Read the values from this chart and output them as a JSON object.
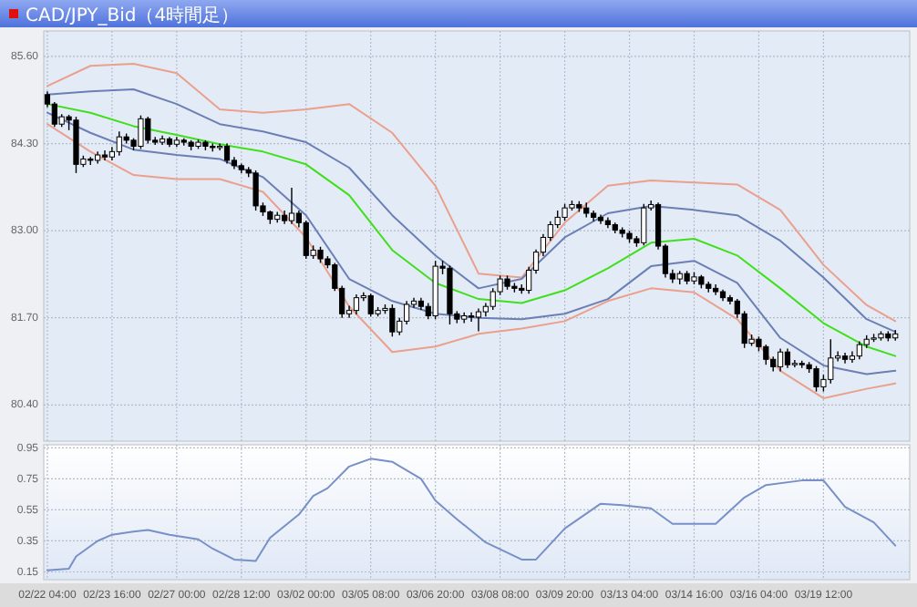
{
  "chart_data": [
    {
      "type": "candlestick",
      "title": "CAD/JPY_Bid（4時間足）",
      "tick_labels": "y",
      "grid": true,
      "ylim": [
        79.86,
        85.98
      ],
      "yticks": [
        {
          "value": 80.4,
          "label": "80.40"
        },
        {
          "value": 81.7,
          "label": "81.70"
        },
        {
          "value": 83.0,
          "label": "83.00"
        },
        {
          "value": 84.3,
          "label": "84.30"
        },
        {
          "value": 85.6,
          "label": "85.60"
        }
      ],
      "categories": [
        null,
        null,
        null,
        null,
        null,
        null,
        null,
        null,
        null,
        null,
        null,
        null,
        null,
        null,
        null,
        null,
        null,
        null,
        null,
        null,
        null,
        null,
        null,
        null,
        null,
        null,
        null,
        null,
        null,
        null,
        null,
        null,
        null,
        null,
        null,
        null,
        null,
        null,
        null,
        null,
        null,
        null,
        null,
        null,
        null,
        null,
        null,
        null,
        null,
        null,
        null,
        null,
        null,
        null,
        null,
        null,
        null,
        null,
        null,
        null,
        null,
        null,
        null,
        null,
        null,
        null,
        null,
        null,
        null,
        null,
        null,
        null,
        null,
        null,
        null,
        null,
        null,
        null,
        null,
        null,
        null,
        null,
        null,
        null,
        null,
        null,
        null,
        null,
        null,
        null,
        null,
        null,
        null,
        null,
        null,
        null,
        null,
        null,
        null,
        null,
        null,
        null,
        null,
        null,
        null,
        null,
        null,
        null,
        null,
        null,
        null,
        null,
        null,
        null,
        null,
        null,
        null,
        null,
        null
      ],
      "ohlc": [
        [
          85.03,
          85.08,
          84.84,
          84.89
        ],
        [
          84.89,
          84.92,
          84.55,
          84.59
        ],
        [
          84.59,
          84.74,
          84.55,
          84.7
        ],
        [
          84.7,
          84.73,
          84.5,
          84.65
        ],
        [
          84.65,
          84.7,
          83.86,
          83.99
        ],
        [
          83.99,
          84.12,
          83.95,
          84.07
        ],
        [
          84.07,
          84.1,
          83.98,
          84.05
        ],
        [
          84.05,
          84.18,
          84.0,
          84.13
        ],
        [
          84.13,
          84.2,
          84.05,
          84.1
        ],
        [
          84.1,
          84.25,
          84.05,
          84.18
        ],
        [
          84.18,
          84.48,
          84.12,
          84.4
        ],
        [
          84.4,
          84.45,
          84.3,
          84.35
        ],
        [
          84.35,
          84.38,
          84.2,
          84.26
        ],
        [
          84.26,
          84.72,
          84.22,
          84.67
        ],
        [
          84.67,
          84.7,
          84.3,
          84.35
        ],
        [
          84.35,
          84.4,
          84.28,
          84.32
        ],
        [
          84.32,
          84.42,
          84.28,
          84.37
        ],
        [
          84.37,
          84.4,
          84.25,
          84.29
        ],
        [
          84.29,
          84.4,
          84.25,
          84.35
        ],
        [
          84.35,
          84.38,
          84.27,
          84.32
        ],
        [
          84.32,
          84.35,
          84.2,
          84.26
        ],
        [
          84.26,
          84.36,
          84.22,
          84.32
        ],
        [
          84.32,
          84.35,
          84.2,
          84.26
        ],
        [
          84.26,
          84.3,
          84.18,
          84.24
        ],
        [
          84.24,
          84.3,
          84.2,
          84.26
        ],
        [
          84.26,
          84.3,
          84.0,
          84.05
        ],
        [
          84.05,
          84.1,
          83.92,
          83.97
        ],
        [
          83.97,
          84.0,
          83.86,
          83.91
        ],
        [
          83.91,
          83.95,
          83.8,
          83.86
        ],
        [
          83.86,
          83.9,
          83.3,
          83.37
        ],
        [
          83.37,
          83.42,
          83.22,
          83.28
        ],
        [
          83.28,
          83.3,
          83.1,
          83.17
        ],
        [
          83.17,
          83.28,
          83.12,
          83.23
        ],
        [
          83.23,
          83.3,
          83.1,
          83.15
        ],
        [
          83.15,
          83.64,
          83.1,
          83.26
        ],
        [
          83.26,
          83.3,
          83.05,
          83.12
        ],
        [
          83.12,
          83.15,
          82.58,
          82.63
        ],
        [
          82.63,
          82.78,
          82.58,
          82.71
        ],
        [
          82.71,
          82.76,
          82.52,
          82.58
        ],
        [
          82.58,
          82.62,
          82.44,
          82.49
        ],
        [
          82.49,
          82.52,
          82.1,
          82.14
        ],
        [
          82.14,
          82.18,
          81.7,
          81.76
        ],
        [
          81.76,
          81.88,
          81.7,
          81.81
        ],
        [
          81.81,
          82.05,
          81.75,
          82.0
        ],
        [
          82.0,
          82.08,
          81.95,
          82.03
        ],
        [
          82.03,
          82.06,
          81.72,
          81.76
        ],
        [
          81.76,
          81.86,
          81.72,
          81.81
        ],
        [
          81.81,
          81.9,
          81.76,
          81.84
        ],
        [
          81.84,
          81.9,
          81.42,
          81.49
        ],
        [
          81.49,
          81.7,
          81.44,
          81.65
        ],
        [
          81.65,
          81.95,
          81.6,
          81.9
        ],
        [
          81.9,
          82.0,
          81.85,
          81.95
        ],
        [
          81.95,
          82.0,
          81.82,
          81.87
        ],
        [
          81.87,
          81.92,
          81.68,
          81.73
        ],
        [
          81.73,
          82.55,
          81.68,
          82.47
        ],
        [
          82.47,
          82.55,
          82.35,
          82.44
        ],
        [
          82.44,
          82.48,
          81.6,
          81.76
        ],
        [
          81.76,
          81.8,
          81.62,
          81.68
        ],
        [
          81.68,
          81.78,
          81.62,
          81.73
        ],
        [
          81.73,
          81.78,
          81.64,
          81.71
        ],
        [
          81.71,
          81.84,
          81.5,
          81.79
        ],
        [
          81.79,
          81.92,
          81.72,
          81.87
        ],
        [
          81.87,
          82.14,
          81.82,
          82.09
        ],
        [
          82.09,
          82.33,
          82.04,
          82.28
        ],
        [
          82.28,
          82.33,
          82.12,
          82.17
        ],
        [
          82.17,
          82.22,
          82.08,
          82.14
        ],
        [
          82.14,
          82.2,
          82.06,
          82.11
        ],
        [
          82.11,
          82.46,
          82.06,
          82.41
        ],
        [
          82.41,
          82.72,
          82.36,
          82.68
        ],
        [
          82.68,
          82.95,
          82.62,
          82.9
        ],
        [
          82.9,
          83.14,
          82.85,
          83.09
        ],
        [
          83.09,
          83.3,
          83.04,
          83.2
        ],
        [
          83.2,
          83.4,
          83.15,
          83.34
        ],
        [
          83.34,
          83.45,
          83.3,
          83.39
        ],
        [
          83.39,
          83.44,
          83.28,
          83.34
        ],
        [
          83.34,
          83.42,
          83.2,
          83.26
        ],
        [
          83.26,
          83.3,
          83.14,
          83.2
        ],
        [
          83.2,
          83.24,
          83.1,
          83.15
        ],
        [
          83.15,
          83.2,
          83.04,
          83.09
        ],
        [
          83.09,
          83.12,
          82.96,
          83.01
        ],
        [
          83.01,
          83.05,
          82.9,
          82.96
        ],
        [
          82.96,
          83.0,
          82.82,
          82.88
        ],
        [
          82.88,
          82.92,
          82.76,
          82.82
        ],
        [
          82.82,
          83.4,
          82.78,
          83.34
        ],
        [
          83.34,
          83.45,
          83.3,
          83.39
        ],
        [
          83.39,
          83.42,
          82.72,
          82.77
        ],
        [
          82.77,
          82.8,
          82.3,
          82.36
        ],
        [
          82.36,
          82.42,
          82.22,
          82.28
        ],
        [
          82.28,
          82.4,
          82.2,
          82.36
        ],
        [
          82.36,
          82.4,
          82.2,
          82.25
        ],
        [
          82.25,
          82.38,
          82.2,
          82.31
        ],
        [
          82.31,
          82.34,
          82.14,
          82.2
        ],
        [
          82.2,
          82.24,
          82.08,
          82.14
        ],
        [
          82.14,
          82.2,
          82.04,
          82.09
        ],
        [
          82.09,
          82.12,
          81.95,
          82.0
        ],
        [
          82.0,
          82.04,
          81.9,
          81.95
        ],
        [
          81.95,
          81.98,
          81.7,
          81.76
        ],
        [
          81.76,
          81.8,
          81.25,
          81.32
        ],
        [
          81.32,
          81.45,
          81.28,
          81.38
        ],
        [
          81.38,
          81.42,
          81.2,
          81.27
        ],
        [
          81.27,
          81.3,
          81.0,
          81.08
        ],
        [
          81.08,
          81.12,
          80.9,
          80.97
        ],
        [
          80.97,
          81.24,
          80.9,
          81.19
        ],
        [
          81.19,
          81.24,
          80.95,
          81.0
        ],
        [
          81.0,
          81.07,
          80.96,
          81.02
        ],
        [
          81.02,
          81.06,
          80.95,
          81.0
        ],
        [
          81.0,
          81.04,
          80.88,
          80.94
        ],
        [
          80.94,
          80.98,
          80.6,
          80.67
        ],
        [
          80.67,
          80.85,
          80.6,
          80.78
        ],
        [
          80.78,
          81.38,
          80.72,
          81.1
        ],
        [
          81.1,
          81.2,
          81.05,
          81.13
        ],
        [
          81.13,
          81.18,
          81.02,
          81.08
        ],
        [
          81.08,
          81.2,
          81.03,
          81.13
        ],
        [
          81.13,
          81.35,
          81.08,
          81.3
        ],
        [
          81.3,
          81.44,
          81.25,
          81.38
        ],
        [
          81.38,
          81.46,
          81.34,
          81.4
        ],
        [
          81.4,
          81.5,
          81.36,
          81.46
        ],
        [
          81.46,
          81.5,
          81.35,
          81.4
        ],
        [
          81.4,
          81.52,
          81.36,
          81.46
        ]
      ],
      "series": [
        {
          "type": "line",
          "color": "#eaa08c",
          "values": [
            85.16,
            null,
            null,
            null,
            null,
            null,
            85.46,
            null,
            null,
            null,
            null,
            null,
            85.49,
            null,
            null,
            null,
            null,
            null,
            85.35,
            null,
            null,
            null,
            null,
            null,
            84.81,
            null,
            null,
            null,
            null,
            null,
            84.76,
            null,
            null,
            null,
            null,
            null,
            84.81,
            null,
            null,
            null,
            null,
            null,
            84.89,
            null,
            null,
            null,
            null,
            null,
            84.46,
            null,
            null,
            null,
            null,
            null,
            83.67,
            null,
            null,
            null,
            null,
            null,
            82.36,
            null,
            null,
            null,
            null,
            null,
            82.3,
            null,
            null,
            null,
            null,
            null,
            83.12,
            null,
            null,
            null,
            null,
            null,
            83.67,
            null,
            null,
            null,
            null,
            null,
            83.75,
            null,
            null,
            null,
            null,
            null,
            83.72,
            null,
            null,
            null,
            null,
            null,
            83.69,
            null,
            null,
            null,
            null,
            null,
            83.31,
            null,
            null,
            null,
            null,
            null,
            82.49,
            null,
            null,
            null,
            null,
            null,
            81.89,
            null,
            null,
            null,
            81.65
          ]
        },
        {
          "type": "line",
          "color": "#6b7fb5",
          "values": [
            85.03,
            null,
            null,
            null,
            null,
            null,
            85.08,
            null,
            null,
            null,
            null,
            null,
            85.11,
            null,
            null,
            null,
            null,
            null,
            84.89,
            null,
            null,
            null,
            null,
            null,
            84.59,
            null,
            null,
            null,
            null,
            null,
            84.48,
            null,
            null,
            null,
            null,
            null,
            84.32,
            null,
            null,
            null,
            null,
            null,
            83.94,
            null,
            null,
            null,
            null,
            null,
            83.23,
            null,
            null,
            null,
            null,
            null,
            82.63,
            null,
            null,
            null,
            null,
            null,
            82.14,
            null,
            null,
            null,
            null,
            null,
            82.28,
            null,
            null,
            null,
            null,
            null,
            82.9,
            null,
            null,
            null,
            null,
            null,
            83.26,
            null,
            null,
            null,
            null,
            null,
            83.37,
            null,
            null,
            null,
            null,
            null,
            83.31,
            null,
            null,
            null,
            null,
            null,
            83.23,
            null,
            null,
            null,
            null,
            null,
            82.85,
            null,
            null,
            null,
            null,
            null,
            82.3,
            null,
            null,
            null,
            null,
            null,
            81.68,
            null,
            null,
            null,
            81.49
          ]
        },
        {
          "type": "line",
          "color": "#3ee01a",
          "values": [
            84.89,
            null,
            null,
            null,
            null,
            null,
            84.76,
            null,
            null,
            null,
            null,
            null,
            84.56,
            null,
            null,
            null,
            null,
            null,
            84.43,
            null,
            null,
            null,
            null,
            null,
            84.29,
            null,
            null,
            null,
            null,
            null,
            84.18,
            null,
            null,
            null,
            null,
            null,
            83.99,
            null,
            null,
            null,
            null,
            null,
            83.53,
            null,
            null,
            null,
            null,
            null,
            82.71,
            null,
            null,
            null,
            null,
            null,
            82.22,
            null,
            null,
            null,
            null,
            null,
            81.98,
            null,
            null,
            null,
            null,
            null,
            81.92,
            null,
            null,
            null,
            null,
            null,
            82.11,
            null,
            null,
            null,
            null,
            null,
            82.44,
            null,
            null,
            null,
            null,
            null,
            82.82,
            null,
            null,
            null,
            null,
            null,
            82.88,
            null,
            null,
            null,
            null,
            null,
            82.63,
            null,
            null,
            null,
            null,
            null,
            82.14,
            null,
            null,
            null,
            null,
            null,
            81.62,
            null,
            null,
            null,
            null,
            null,
            81.27,
            null,
            null,
            null,
            81.13
          ]
        },
        {
          "type": "line",
          "color": "#6b7fb5",
          "values": [
            84.76,
            null,
            null,
            null,
            null,
            null,
            84.46,
            null,
            null,
            null,
            null,
            null,
            84.21,
            null,
            null,
            null,
            null,
            null,
            84.13,
            null,
            null,
            null,
            null,
            null,
            84.07,
            null,
            null,
            null,
            null,
            null,
            83.8,
            null,
            null,
            null,
            null,
            null,
            83.23,
            null,
            null,
            null,
            null,
            null,
            82.28,
            null,
            null,
            null,
            null,
            null,
            81.95,
            null,
            null,
            null,
            null,
            null,
            81.76,
            null,
            null,
            null,
            null,
            null,
            81.7,
            null,
            null,
            null,
            null,
            null,
            81.68,
            null,
            null,
            null,
            null,
            null,
            81.76,
            null,
            null,
            null,
            null,
            null,
            81.98,
            null,
            null,
            null,
            null,
            null,
            82.47,
            null,
            null,
            null,
            null,
            null,
            82.55,
            null,
            null,
            null,
            null,
            null,
            82.22,
            null,
            null,
            null,
            null,
            null,
            81.4,
            null,
            null,
            null,
            null,
            null,
            80.99,
            null,
            null,
            null,
            null,
            null,
            80.86,
            null,
            null,
            null,
            80.91
          ]
        },
        {
          "type": "line",
          "color": "#eaa08c",
          "values": [
            84.59,
            null,
            null,
            null,
            null,
            null,
            84.18,
            null,
            null,
            null,
            null,
            null,
            83.83,
            null,
            null,
            null,
            null,
            null,
            83.77,
            null,
            null,
            null,
            null,
            null,
            83.77,
            null,
            null,
            null,
            null,
            null,
            83.58,
            null,
            null,
            null,
            null,
            null,
            82.9,
            null,
            null,
            null,
            null,
            null,
            81.87,
            null,
            null,
            null,
            null,
            null,
            81.19,
            null,
            null,
            null,
            null,
            null,
            81.27,
            null,
            null,
            null,
            null,
            null,
            81.46,
            null,
            null,
            null,
            null,
            null,
            81.54,
            null,
            null,
            null,
            null,
            null,
            81.65,
            null,
            null,
            null,
            null,
            null,
            81.95,
            null,
            null,
            null,
            null,
            null,
            82.14,
            null,
            null,
            null,
            null,
            null,
            82.08,
            null,
            null,
            null,
            null,
            null,
            81.68,
            null,
            null,
            null,
            null,
            null,
            80.91,
            null,
            null,
            null,
            null,
            null,
            80.5,
            null,
            null,
            null,
            null,
            null,
            80.64,
            null,
            null,
            null,
            80.72
          ]
        }
      ]
    },
    {
      "type": "line",
      "grid": true,
      "ylim": [
        0.1,
        0.97
      ],
      "yticks": [
        0.15,
        0.35,
        0.55,
        0.75,
        0.95
      ],
      "categories": [
        "02/22 04:00",
        null,
        null,
        null,
        null,
        null,
        null,
        null,
        null,
        "02/23 16:00",
        null,
        null,
        null,
        null,
        null,
        null,
        null,
        null,
        "02/27 00:00",
        null,
        null,
        null,
        null,
        null,
        null,
        null,
        null,
        "02/28 12:00",
        null,
        null,
        null,
        null,
        null,
        null,
        null,
        null,
        "03/02 00:00",
        null,
        null,
        null,
        null,
        null,
        null,
        null,
        null,
        "03/05 08:00",
        null,
        null,
        null,
        null,
        null,
        null,
        null,
        null,
        "03/06 20:00",
        null,
        null,
        null,
        null,
        null,
        null,
        null,
        null,
        "03/08 08:00",
        null,
        null,
        null,
        null,
        null,
        null,
        null,
        null,
        "03/09 20:00",
        null,
        null,
        null,
        null,
        null,
        null,
        null,
        null,
        "03/13 04:00",
        null,
        null,
        null,
        null,
        null,
        null,
        null,
        null,
        "03/14 16:00",
        null,
        null,
        null,
        null,
        null,
        null,
        null,
        null,
        "03/16 04:00",
        null,
        null,
        null,
        null,
        null,
        null,
        null,
        null,
        "03/19 12:00",
        null,
        null,
        null,
        null,
        null,
        null,
        null,
        null,
        null,
        null
      ],
      "series": [
        {
          "color": "#7890c8",
          "values": [
            0.16,
            null,
            null,
            0.17,
            0.25,
            null,
            null,
            0.35,
            null,
            0.39,
            null,
            null,
            0.41,
            null,
            0.42,
            null,
            null,
            0.39,
            null,
            null,
            null,
            0.36,
            null,
            0.3,
            null,
            null,
            0.23,
            null,
            null,
            0.22,
            null,
            0.37,
            null,
            null,
            null,
            0.52,
            null,
            0.64,
            null,
            0.69,
            null,
            null,
            0.83,
            null,
            null,
            0.88,
            null,
            null,
            0.86,
            null,
            null,
            null,
            0.75,
            null,
            0.61,
            null,
            null,
            0.49,
            null,
            null,
            null,
            0.34,
            null,
            null,
            null,
            null,
            0.23,
            null,
            0.23,
            null,
            null,
            null,
            0.43,
            null,
            null,
            null,
            null,
            0.59,
            null,
            null,
            0.58,
            null,
            null,
            null,
            0.56,
            null,
            null,
            0.46,
            null,
            null,
            null,
            null,
            null,
            0.46,
            null,
            null,
            null,
            0.63,
            null,
            null,
            0.71,
            null,
            null,
            null,
            null,
            0.74,
            null,
            null,
            0.74,
            null,
            null,
            0.57,
            null,
            null,
            null,
            0.47,
            null,
            null,
            0.32
          ]
        }
      ]
    }
  ]
}
